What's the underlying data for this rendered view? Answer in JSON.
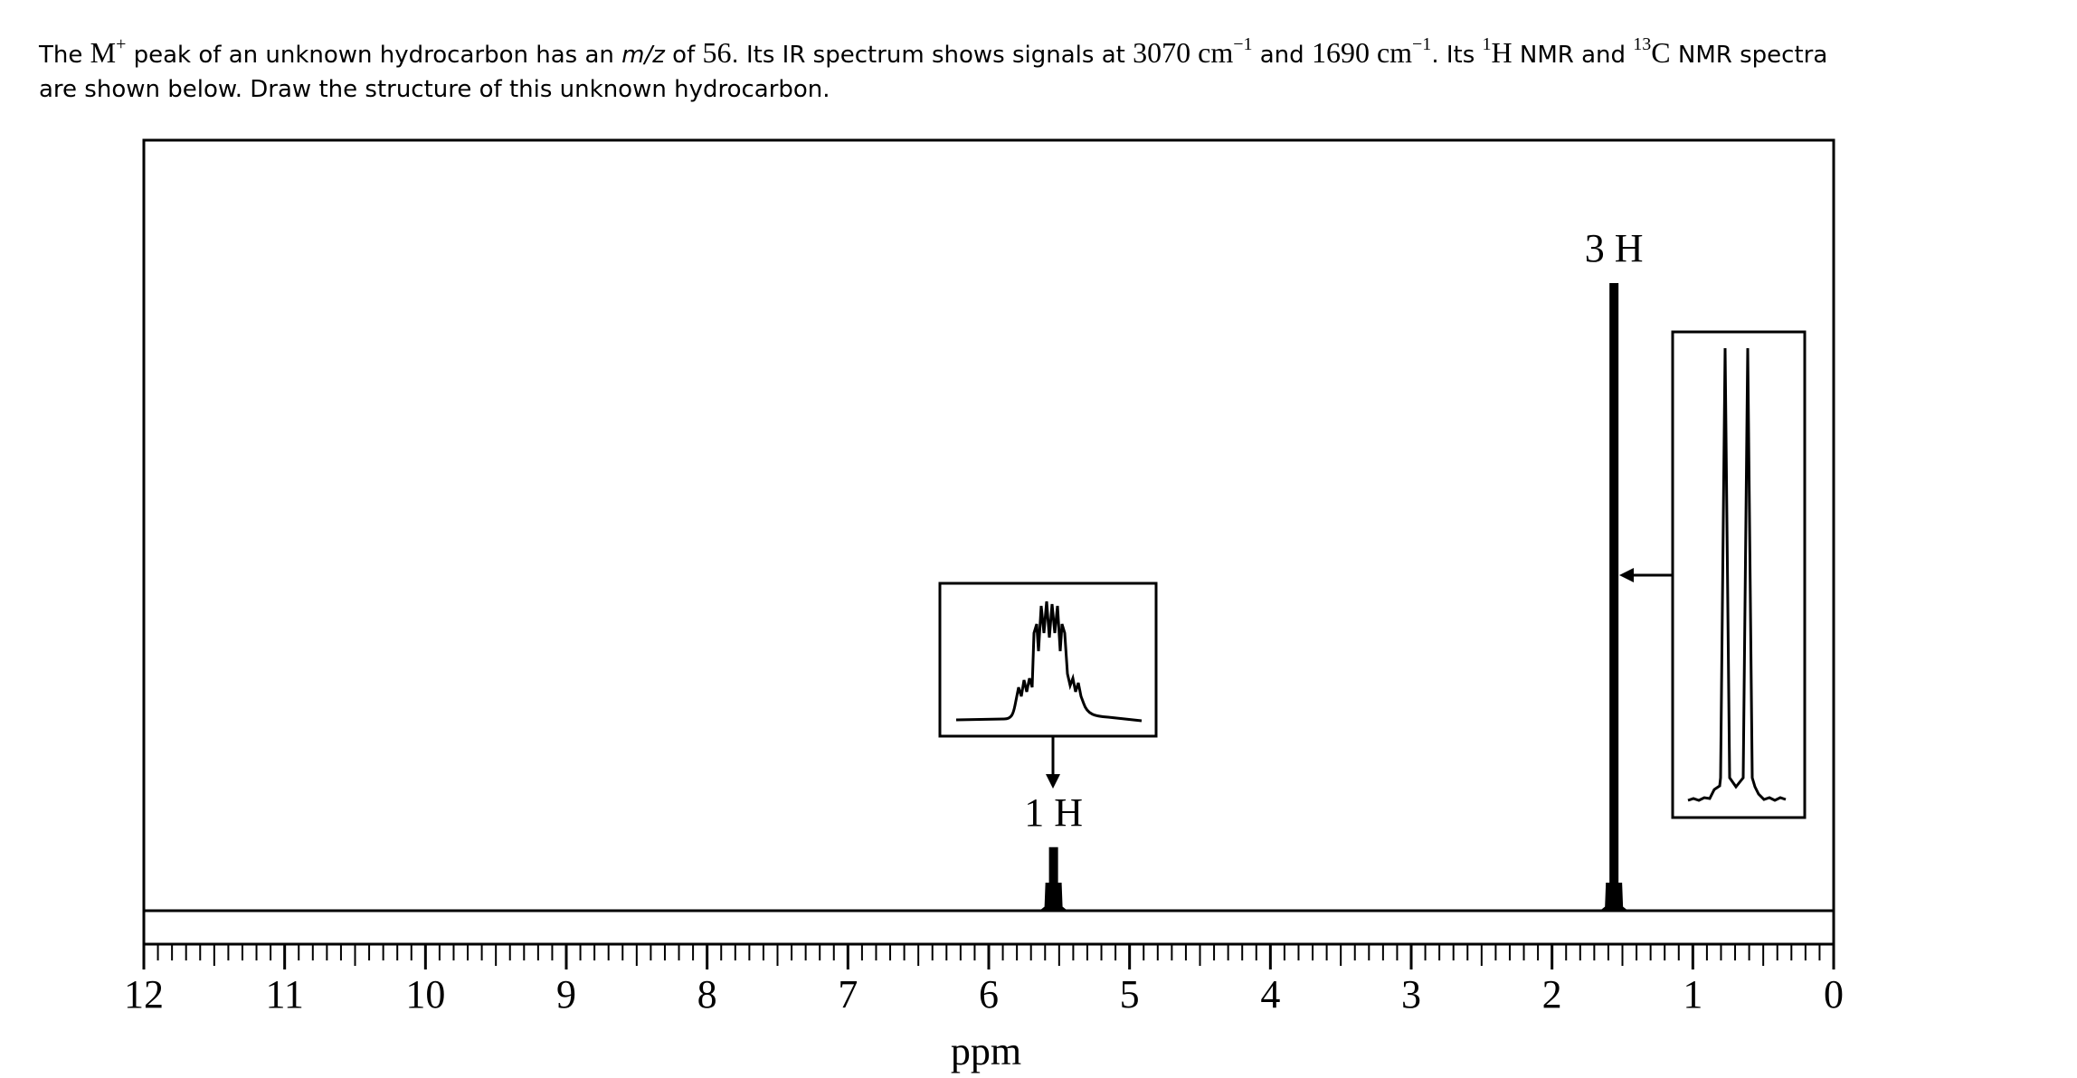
{
  "question": {
    "segments": [
      "The ",
      "M",
      "+",
      " peak of an unknown hydrocarbon has an ",
      "m/z",
      " of ",
      "56",
      ". Its IR spectrum shows signals at ",
      "3070 cm",
      "−1",
      " and ",
      "1690 cm",
      "−1",
      ". Its ",
      "1",
      "H",
      " NMR and ",
      "13",
      "C",
      " NMR spectra",
      "are shown below. Draw the structure of this unknown hydrocarbon."
    ]
  },
  "chart_data": {
    "type": "nmr",
    "xlabel": "ppm",
    "xlim": [
      12,
      0
    ],
    "xticks": [
      12,
      11,
      10,
      9,
      8,
      7,
      6,
      5,
      4,
      3,
      2,
      1,
      0
    ],
    "x": [
      5.54,
      1.56
    ],
    "values": [
      10,
      100
    ],
    "peak_labels": [
      "1 H",
      "3 H"
    ],
    "color": "#000000"
  }
}
